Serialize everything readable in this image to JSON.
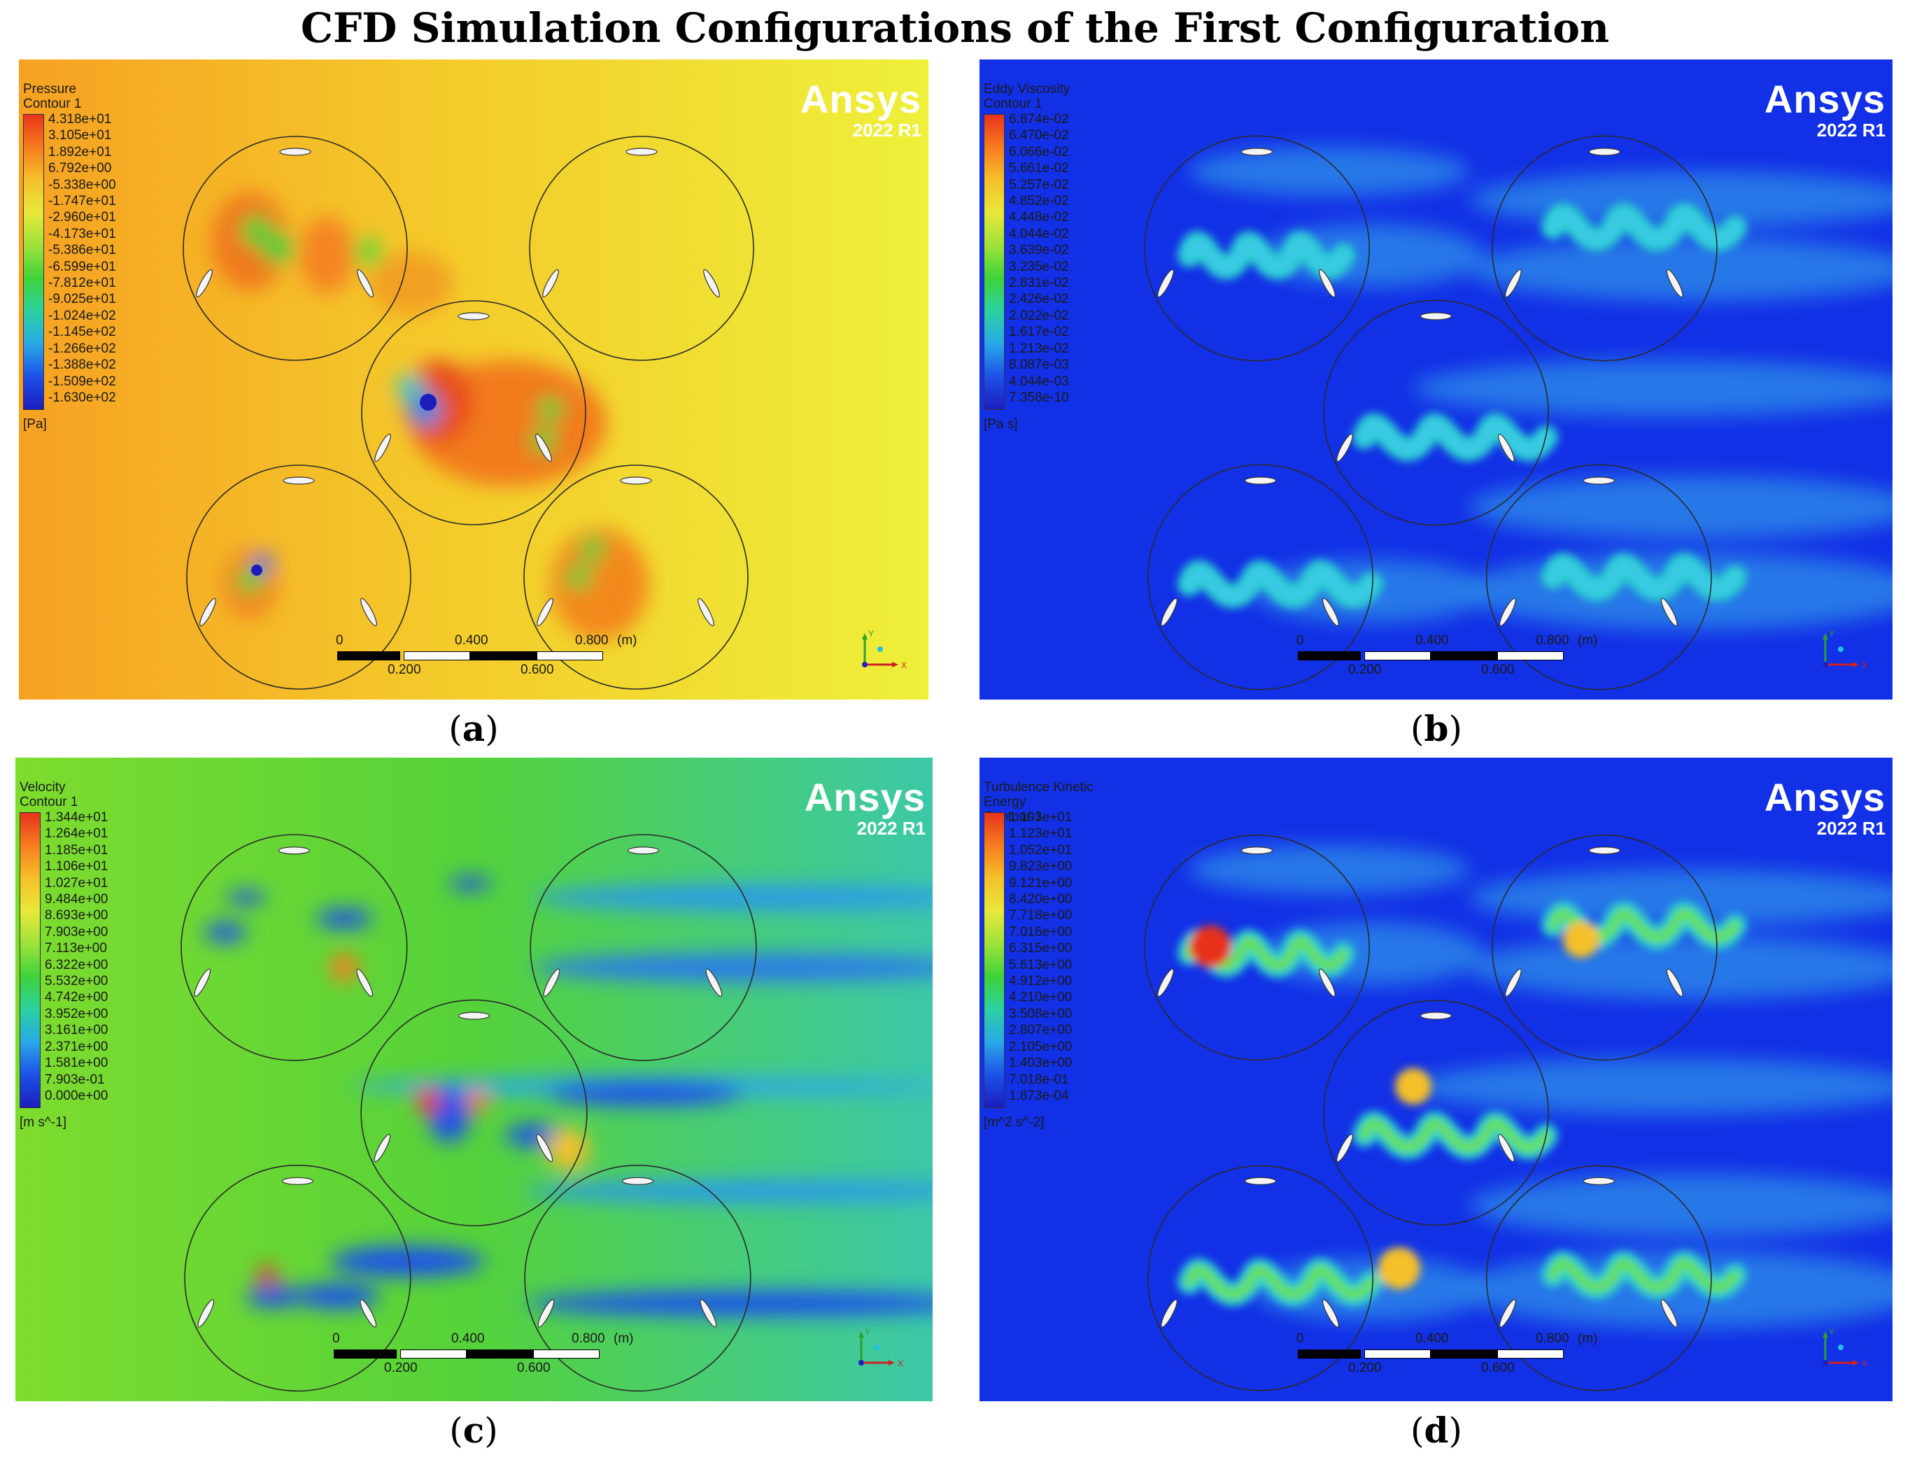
{
  "figure": {
    "title": "CFD Simulation Configurations of the First Configuration"
  },
  "panels": [
    {
      "caption_letter": "a",
      "legend_title": "Pressure",
      "legend_subtitle": "Contour 1",
      "ticks": [
        "4.318e+01",
        "3.105e+01",
        "1.892e+01",
        "6.792e+00",
        "-5.338e+00",
        "-1.747e+01",
        "-2.960e+01",
        "-4.173e+01",
        "-5.386e+01",
        "-6.599e+01",
        "-7.812e+01",
        "-9.025e+01",
        "-1.024e+02",
        "-1.145e+02",
        "-1.266e+02",
        "-1.388e+02",
        "-1.509e+02",
        "-1.630e+02"
      ],
      "unit": "[Pa]",
      "colormap": "pressure",
      "background": "#f3cf2a"
    },
    {
      "caption_letter": "b",
      "legend_title": "Eddy Viscosity",
      "legend_subtitle": "Contour 1",
      "ticks": [
        "6.874e-02",
        "6.470e-02",
        "6.066e-02",
        "5.661e-02",
        "5.257e-02",
        "4.852e-02",
        "4.448e-02",
        "4.044e-02",
        "3.639e-02",
        "3.235e-02",
        "2.831e-02",
        "2.426e-02",
        "2.022e-02",
        "1.617e-02",
        "1.213e-02",
        "8.087e-03",
        "4.044e-03",
        "7.358e-10"
      ],
      "unit": "[Pa s]",
      "colormap": "wake",
      "background": "#1230e6"
    },
    {
      "caption_letter": "c",
      "legend_title": "Velocity",
      "legend_subtitle": "Contour 1",
      "ticks": [
        "1.344e+01",
        "1.264e+01",
        "1.185e+01",
        "1.106e+01",
        "1.027e+01",
        "9.484e+00",
        "8.693e+00",
        "7.903e+00",
        "7.113e+00",
        "6.322e+00",
        "5.532e+00",
        "4.742e+00",
        "3.952e+00",
        "3.161e+00",
        "2.371e+00",
        "1.581e+00",
        "7.903e-01",
        "0.000e+00"
      ],
      "unit": "[m s^-1]",
      "colormap": "velocity",
      "background": "#5fd22e"
    },
    {
      "caption_letter": "d",
      "legend_title": "Turbulence Kinetic Energy",
      "legend_subtitle": "Contour 1",
      "ticks": [
        "1.193e+01",
        "1.123e+01",
        "1.052e+01",
        "9.823e+00",
        "9.121e+00",
        "8.420e+00",
        "7.718e+00",
        "7.016e+00",
        "6.315e+00",
        "5.613e+00",
        "4.912e+00",
        "4.210e+00",
        "3.508e+00",
        "2.807e+00",
        "2.105e+00",
        "1.403e+00",
        "7.018e-01",
        "1.873e-04"
      ],
      "unit": "[m^2 s^-2]",
      "colormap": "wake",
      "background": "#1230e6"
    }
  ],
  "brand": {
    "name": "Ansys",
    "version": "2022 R1"
  },
  "scale_bar": {
    "top_labels": [
      "0",
      "0.400",
      "0.800"
    ],
    "unit": "(m)",
    "bottom_labels": [
      "0.200",
      "0.600"
    ]
  },
  "axes": {
    "x": "X",
    "y": "Y"
  },
  "colors": {
    "rainbow": [
      "#e8321c",
      "#f77d1f",
      "#f5c02a",
      "#e8e83a",
      "#9ee23a",
      "#3fd23a",
      "#2ad2a0",
      "#2aa8e8",
      "#1c52e8",
      "#1d1dbe"
    ]
  }
}
